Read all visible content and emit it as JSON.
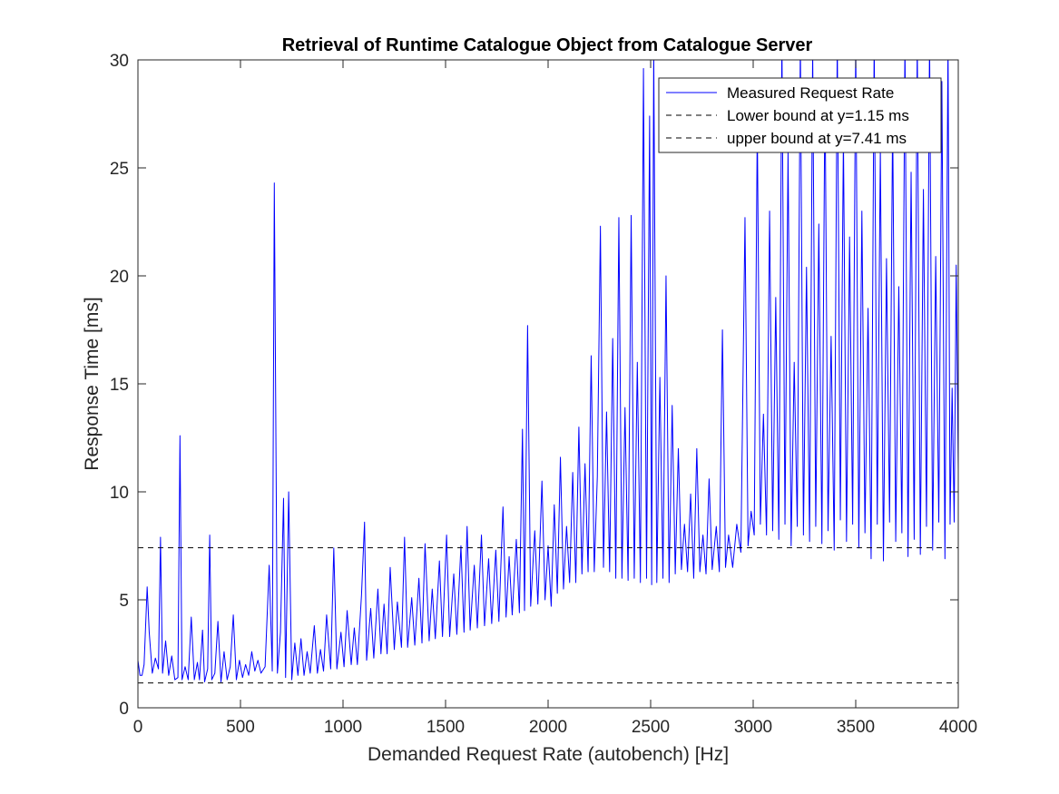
{
  "chart_data": {
    "type": "line",
    "title": "Retrieval of Runtime Catalogue Object from Catalogue Server",
    "xlabel": "Demanded Request Rate (autobench) [Hz]",
    "ylabel": "Response Time [ms]",
    "xlim": [
      0,
      4000
    ],
    "ylim": [
      0,
      30
    ],
    "xticks": [
      0,
      500,
      1000,
      1500,
      2000,
      2500,
      3000,
      3500,
      4000
    ],
    "yticks": [
      0,
      5,
      10,
      15,
      20,
      25,
      30
    ],
    "grid": false,
    "legend_location": "top-right",
    "colors": {
      "series": "#0000ff",
      "bounds": "#000000",
      "axes": "#262626"
    },
    "series": [
      {
        "name": "Measured Request Rate",
        "style": "solid",
        "points": [
          [
            0,
            2.2
          ],
          [
            10,
            1.5
          ],
          [
            20,
            1.5
          ],
          [
            30,
            2.0
          ],
          [
            45,
            5.6
          ],
          [
            55,
            3.5
          ],
          [
            70,
            1.6
          ],
          [
            85,
            2.3
          ],
          [
            100,
            1.8
          ],
          [
            110,
            7.9
          ],
          [
            120,
            1.6
          ],
          [
            135,
            3.1
          ],
          [
            150,
            1.5
          ],
          [
            165,
            2.4
          ],
          [
            180,
            1.3
          ],
          [
            195,
            1.4
          ],
          [
            205,
            12.6
          ],
          [
            215,
            1.3
          ],
          [
            230,
            1.9
          ],
          [
            245,
            1.3
          ],
          [
            260,
            4.2
          ],
          [
            275,
            1.3
          ],
          [
            290,
            2.1
          ],
          [
            300,
            1.3
          ],
          [
            315,
            3.6
          ],
          [
            325,
            1.2
          ],
          [
            340,
            1.8
          ],
          [
            350,
            8.0
          ],
          [
            360,
            1.3
          ],
          [
            375,
            1.6
          ],
          [
            390,
            4.0
          ],
          [
            405,
            1.2
          ],
          [
            420,
            2.6
          ],
          [
            435,
            1.3
          ],
          [
            450,
            1.9
          ],
          [
            465,
            4.3
          ],
          [
            480,
            1.3
          ],
          [
            495,
            2.2
          ],
          [
            510,
            1.4
          ],
          [
            525,
            2.0
          ],
          [
            540,
            1.5
          ],
          [
            555,
            2.6
          ],
          [
            570,
            1.7
          ],
          [
            585,
            2.2
          ],
          [
            600,
            1.6
          ],
          [
            620,
            1.9
          ],
          [
            640,
            6.6
          ],
          [
            655,
            1.7
          ],
          [
            665,
            24.3
          ],
          [
            680,
            1.6
          ],
          [
            695,
            3.5
          ],
          [
            710,
            9.7
          ],
          [
            720,
            1.4
          ],
          [
            735,
            10.0
          ],
          [
            750,
            1.3
          ],
          [
            765,
            3.0
          ],
          [
            780,
            1.5
          ],
          [
            795,
            3.2
          ],
          [
            810,
            1.5
          ],
          [
            825,
            2.6
          ],
          [
            840,
            1.6
          ],
          [
            860,
            3.8
          ],
          [
            875,
            1.6
          ],
          [
            890,
            2.7
          ],
          [
            905,
            1.7
          ],
          [
            920,
            4.3
          ],
          [
            940,
            1.8
          ],
          [
            955,
            7.4
          ],
          [
            970,
            1.8
          ],
          [
            990,
            3.5
          ],
          [
            1005,
            1.9
          ],
          [
            1020,
            4.5
          ],
          [
            1040,
            2.0
          ],
          [
            1055,
            3.7
          ],
          [
            1070,
            2.0
          ],
          [
            1090,
            5.2
          ],
          [
            1105,
            8.6
          ],
          [
            1115,
            2.2
          ],
          [
            1135,
            4.6
          ],
          [
            1150,
            2.3
          ],
          [
            1170,
            5.5
          ],
          [
            1185,
            2.5
          ],
          [
            1200,
            4.8
          ],
          [
            1215,
            2.5
          ],
          [
            1230,
            6.5
          ],
          [
            1250,
            2.7
          ],
          [
            1265,
            4.9
          ],
          [
            1285,
            2.8
          ],
          [
            1300,
            7.9
          ],
          [
            1315,
            2.8
          ],
          [
            1335,
            5.1
          ],
          [
            1350,
            2.9
          ],
          [
            1370,
            6.0
          ],
          [
            1385,
            3.0
          ],
          [
            1400,
            7.6
          ],
          [
            1420,
            3.1
          ],
          [
            1435,
            5.5
          ],
          [
            1450,
            3.2
          ],
          [
            1470,
            6.8
          ],
          [
            1485,
            3.3
          ],
          [
            1505,
            8.0
          ],
          [
            1520,
            3.3
          ],
          [
            1540,
            6.2
          ],
          [
            1555,
            3.4
          ],
          [
            1575,
            7.5
          ],
          [
            1590,
            3.5
          ],
          [
            1605,
            8.4
          ],
          [
            1620,
            3.6
          ],
          [
            1640,
            6.6
          ],
          [
            1655,
            3.7
          ],
          [
            1675,
            8.0
          ],
          [
            1690,
            3.8
          ],
          [
            1710,
            6.9
          ],
          [
            1725,
            3.9
          ],
          [
            1745,
            7.3
          ],
          [
            1760,
            4.0
          ],
          [
            1780,
            9.3
          ],
          [
            1795,
            4.2
          ],
          [
            1810,
            7.0
          ],
          [
            1825,
            4.3
          ],
          [
            1845,
            7.8
          ],
          [
            1860,
            4.4
          ],
          [
            1875,
            12.9
          ],
          [
            1885,
            4.5
          ],
          [
            1900,
            17.7
          ],
          [
            1915,
            4.7
          ],
          [
            1935,
            8.2
          ],
          [
            1950,
            4.8
          ],
          [
            1970,
            10.5
          ],
          [
            1985,
            5.0
          ],
          [
            2000,
            7.5
          ],
          [
            2015,
            4.7
          ],
          [
            2030,
            9.4
          ],
          [
            2045,
            5.3
          ],
          [
            2060,
            11.6
          ],
          [
            2075,
            5.5
          ],
          [
            2090,
            8.4
          ],
          [
            2105,
            5.8
          ],
          [
            2120,
            10.9
          ],
          [
            2135,
            5.8
          ],
          [
            2150,
            13.0
          ],
          [
            2165,
            6.2
          ],
          [
            2180,
            11.3
          ],
          [
            2195,
            6.3
          ],
          [
            2210,
            16.3
          ],
          [
            2225,
            6.3
          ],
          [
            2240,
            10.7
          ],
          [
            2255,
            22.3
          ],
          [
            2270,
            6.5
          ],
          [
            2285,
            13.7
          ],
          [
            2300,
            6.3
          ],
          [
            2315,
            17.1
          ],
          [
            2330,
            6.0
          ],
          [
            2345,
            22.7
          ],
          [
            2360,
            6.0
          ],
          [
            2375,
            13.9
          ],
          [
            2390,
            5.9
          ],
          [
            2405,
            22.8
          ],
          [
            2420,
            6.0
          ],
          [
            2435,
            16.0
          ],
          [
            2450,
            5.8
          ],
          [
            2465,
            29.6
          ],
          [
            2480,
            6.0
          ],
          [
            2495,
            27.4
          ],
          [
            2505,
            5.7
          ],
          [
            2515,
            30.5
          ],
          [
            2530,
            5.8
          ],
          [
            2545,
            15.3
          ],
          [
            2560,
            6.0
          ],
          [
            2575,
            20.0
          ],
          [
            2590,
            5.8
          ],
          [
            2605,
            14.0
          ],
          [
            2620,
            6.2
          ],
          [
            2635,
            12.0
          ],
          [
            2650,
            6.4
          ],
          [
            2665,
            8.5
          ],
          [
            2680,
            6.3
          ],
          [
            2695,
            9.9
          ],
          [
            2710,
            6.0
          ],
          [
            2725,
            12.0
          ],
          [
            2740,
            6.3
          ],
          [
            2755,
            8.0
          ],
          [
            2770,
            6.2
          ],
          [
            2785,
            10.6
          ],
          [
            2800,
            6.4
          ],
          [
            2820,
            8.4
          ],
          [
            2835,
            6.3
          ],
          [
            2850,
            17.5
          ],
          [
            2865,
            6.5
          ],
          [
            2880,
            8.0
          ],
          [
            2900,
            6.5
          ],
          [
            2920,
            8.5
          ],
          [
            2940,
            7.2
          ],
          [
            2960,
            22.7
          ],
          [
            2975,
            7.5
          ],
          [
            2990,
            9.1
          ],
          [
            3005,
            8.0
          ],
          [
            3020,
            27.1
          ],
          [
            3035,
            8.5
          ],
          [
            3050,
            13.6
          ],
          [
            3065,
            8.0
          ],
          [
            3080,
            23.0
          ],
          [
            3095,
            8.2
          ],
          [
            3110,
            19.0
          ],
          [
            3125,
            7.8
          ],
          [
            3140,
            31.0
          ],
          [
            3155,
            8.5
          ],
          [
            3170,
            25.8
          ],
          [
            3185,
            7.5
          ],
          [
            3200,
            16.0
          ],
          [
            3215,
            8.4
          ],
          [
            3230,
            31.0
          ],
          [
            3245,
            8.0
          ],
          [
            3260,
            20.4
          ],
          [
            3275,
            7.7
          ],
          [
            3290,
            30.5
          ],
          [
            3305,
            8.4
          ],
          [
            3320,
            22.4
          ],
          [
            3335,
            7.6
          ],
          [
            3350,
            29.0
          ],
          [
            3365,
            8.2
          ],
          [
            3380,
            17.2
          ],
          [
            3395,
            7.3
          ],
          [
            3410,
            31.0
          ],
          [
            3425,
            8.7
          ],
          [
            3440,
            26.5
          ],
          [
            3455,
            7.7
          ],
          [
            3470,
            21.8
          ],
          [
            3485,
            8.5
          ],
          [
            3500,
            31.0
          ],
          [
            3515,
            7.4
          ],
          [
            3530,
            23.0
          ],
          [
            3545,
            8.1
          ],
          [
            3560,
            18.5
          ],
          [
            3575,
            6.9
          ],
          [
            3590,
            31.0
          ],
          [
            3605,
            8.5
          ],
          [
            3620,
            25.9
          ],
          [
            3635,
            6.8
          ],
          [
            3650,
            20.8
          ],
          [
            3665,
            8.6
          ],
          [
            3680,
            27.4
          ],
          [
            3695,
            7.7
          ],
          [
            3710,
            19.5
          ],
          [
            3725,
            8.1
          ],
          [
            3740,
            31.0
          ],
          [
            3755,
            7.0
          ],
          [
            3770,
            24.8
          ],
          [
            3785,
            7.8
          ],
          [
            3800,
            31.0
          ],
          [
            3815,
            7.1
          ],
          [
            3830,
            24.0
          ],
          [
            3845,
            8.4
          ],
          [
            3860,
            31.0
          ],
          [
            3875,
            7.3
          ],
          [
            3890,
            20.9
          ],
          [
            3905,
            8.6
          ],
          [
            3920,
            29.0
          ],
          [
            3935,
            6.9
          ],
          [
            3950,
            31.0
          ],
          [
            3960,
            8.5
          ],
          [
            3970,
            14.8
          ],
          [
            3980,
            8.6
          ],
          [
            3990,
            20.5
          ],
          [
            4000,
            11.0
          ]
        ]
      },
      {
        "name": "Lower bound at y=1.15 ms",
        "style": "dashed",
        "y": 1.15
      },
      {
        "name": "upper bound at y=7.41 ms",
        "style": "dashed",
        "y": 7.41
      }
    ]
  }
}
